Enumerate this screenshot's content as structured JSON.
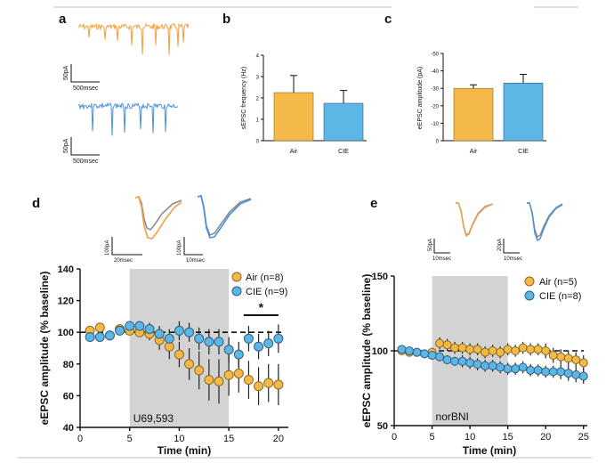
{
  "colors": {
    "air": "#F5B94A",
    "air_stroke": "#8A6A1E",
    "cie": "#5DB7E6",
    "cie_stroke": "#2F5F7E",
    "air_trace": "#F2A03C",
    "cie_trace": "#4A90DD",
    "grey_trace": "#8C8C8C",
    "drug_band": "#D3D3D3",
    "rule": "#999999"
  },
  "panel_labels": {
    "a": "a",
    "b": "b",
    "c": "c",
    "d": "d",
    "e": "e"
  },
  "scale_bars": {
    "a_top": {
      "y": "50pA",
      "x": "500msec"
    },
    "a_bottom": {
      "y": "50pA",
      "x": "500msec"
    },
    "d_left": {
      "y": "100pA",
      "x": "20msec"
    },
    "d_right": {
      "y": "100pA",
      "x": "10msec"
    },
    "e_left": {
      "y": "50pA",
      "x": "10msec"
    },
    "e_right": {
      "y": "20pA",
      "x": "10msec"
    }
  },
  "chart_data": [
    {
      "id": "b",
      "type": "bar",
      "ylabel": "sEPSC frequency (Hz)",
      "ylim": [
        0,
        4
      ],
      "yticks": [
        "0",
        "1",
        "2",
        "3",
        "4"
      ],
      "categories": [
        "Air",
        "CIE"
      ],
      "values": [
        2.25,
        1.75
      ],
      "errors": [
        0.8,
        0.6
      ]
    },
    {
      "id": "c",
      "type": "bar",
      "ylabel": "eEPSC amplitude (pA)",
      "ylim": [
        0,
        -50
      ],
      "yticks": [
        "0",
        "-10",
        "-20",
        "-30",
        "-40",
        "-50"
      ],
      "categories": [
        "Air",
        "CIE"
      ],
      "values": [
        -30,
        -33
      ],
      "errors": [
        2,
        5
      ]
    },
    {
      "id": "d",
      "type": "scatter",
      "xlabel": "Time  (min)",
      "ylabel": "eEPSC amplitude (% baseline)",
      "xlim": [
        0,
        21
      ],
      "ylim": [
        40,
        140
      ],
      "xticks": [
        "0",
        "5",
        "10",
        "15",
        "20"
      ],
      "yticks": [
        "40",
        "60",
        "80",
        "100",
        "120",
        "140"
      ],
      "drug_label": "U69,593",
      "drug_window": [
        5,
        15
      ],
      "baseline": 100,
      "significance": {
        "label": "*",
        "from": 16.5,
        "to": 20
      },
      "legend": [
        "Air (n=8)",
        "CIE (n=9)"
      ],
      "series": [
        {
          "name": "Air (n=8)",
          "x": [
            1,
            2,
            3,
            4,
            5,
            6,
            7,
            8,
            9,
            10,
            11,
            12,
            13,
            14,
            15,
            16,
            17,
            18,
            19,
            20
          ],
          "y": [
            101,
            103,
            98,
            102,
            101,
            100,
            99,
            95,
            91,
            86,
            80,
            76,
            70,
            69,
            73,
            74,
            70,
            66,
            68,
            67
          ],
          "err": [
            3,
            3,
            3,
            3,
            3,
            3,
            4,
            6,
            8,
            8,
            10,
            12,
            13,
            14,
            13,
            12,
            12,
            12,
            12,
            13
          ]
        },
        {
          "name": "CIE (n=9)",
          "x": [
            1,
            2,
            3,
            4,
            5,
            6,
            7,
            8,
            9,
            10,
            11,
            12,
            13,
            14,
            15,
            16,
            17,
            18,
            19,
            20
          ],
          "y": [
            97,
            97,
            98,
            101,
            104,
            104,
            102,
            99,
            96,
            101,
            100,
            96,
            94,
            94,
            89,
            86,
            96,
            91,
            93,
            96
          ],
          "err": [
            3,
            3,
            3,
            3,
            3,
            3,
            4,
            5,
            6,
            6,
            6,
            7,
            8,
            8,
            8,
            8,
            8,
            8,
            8,
            9
          ]
        }
      ]
    },
    {
      "id": "e",
      "type": "scatter",
      "xlabel": "Time  (min)",
      "ylabel": "eEPSC amplitude (% baseline)",
      "xlim": [
        0,
        25.5
      ],
      "ylim": [
        50,
        150
      ],
      "xticks": [
        "0",
        "5",
        "10",
        "15",
        "20",
        "25"
      ],
      "yticks": [
        "50",
        "100",
        "150"
      ],
      "drug_label": "norBNI",
      "drug_window": [
        5,
        15
      ],
      "baseline": 100,
      "legend": [
        "Air (n=5)",
        "CIE (n=8)"
      ],
      "series": [
        {
          "name": "Air (n=5)",
          "x": [
            1,
            2,
            3,
            4,
            5,
            6,
            7,
            8,
            9,
            10,
            11,
            12,
            13,
            14,
            15,
            16,
            17,
            18,
            19,
            20,
            21,
            22,
            23,
            24,
            25
          ],
          "y": [
            100,
            99,
            99,
            98,
            99,
            105,
            104,
            102,
            102,
            101,
            101,
            99,
            100,
            99,
            101,
            100,
            102,
            101,
            101,
            100,
            97,
            96,
            95,
            94,
            92
          ],
          "err": [
            2,
            2,
            2,
            2,
            3,
            4,
            4,
            4,
            4,
            4,
            4,
            4,
            4,
            4,
            4,
            4,
            4,
            4,
            4,
            5,
            5,
            5,
            5,
            5,
            5
          ]
        },
        {
          "name": "CIE (n=8)",
          "x": [
            1,
            2,
            3,
            4,
            5,
            6,
            7,
            8,
            9,
            10,
            11,
            12,
            13,
            14,
            15,
            16,
            17,
            18,
            19,
            20,
            21,
            22,
            23,
            24,
            25
          ],
          "y": [
            101,
            100,
            99,
            98,
            97,
            96,
            94,
            93,
            93,
            92,
            91,
            90,
            90,
            89,
            88,
            88,
            89,
            87,
            87,
            86,
            86,
            86,
            85,
            84,
            83
          ],
          "err": [
            2,
            2,
            2,
            2,
            3,
            3,
            3,
            3,
            4,
            4,
            4,
            4,
            4,
            4,
            4,
            4,
            4,
            4,
            4,
            4,
            4,
            5,
            5,
            5,
            5
          ]
        }
      ]
    }
  ]
}
